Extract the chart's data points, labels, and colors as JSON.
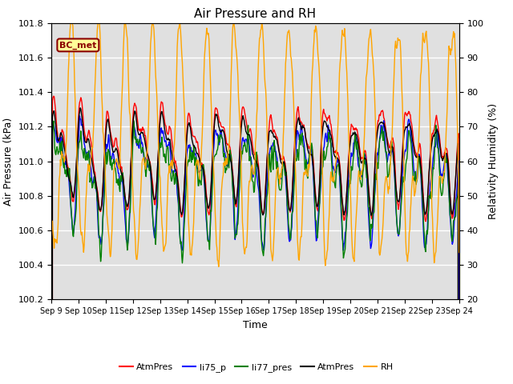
{
  "title": "Air Pressure and RH",
  "xlabel": "Time",
  "ylabel_left": "Air Pressure (kPa)",
  "ylabel_right": "Relativity Humidity (%)",
  "ylim_left": [
    100.2,
    101.8
  ],
  "ylim_right": [
    20,
    100
  ],
  "yticks_left": [
    100.2,
    100.4,
    100.6,
    100.8,
    101.0,
    101.2,
    101.4,
    101.6,
    101.8
  ],
  "yticks_right": [
    20,
    30,
    40,
    50,
    60,
    70,
    80,
    90,
    100
  ],
  "xtick_labels": [
    "Sep 9",
    "Sep 10",
    "Sep 11",
    "Sep 12",
    "Sep 13",
    "Sep 14",
    "Sep 15",
    "Sep 16",
    "Sep 17",
    "Sep 18",
    "Sep 19",
    "Sep 20",
    "Sep 21",
    "Sep 22",
    "Sep 23",
    "Sep 24"
  ],
  "legend_labels": [
    "AtmPres",
    "li75_p",
    "li77_pres",
    "AtmPres",
    "RH"
  ],
  "legend_colors": [
    "red",
    "blue",
    "green",
    "black",
    "orange"
  ],
  "station_label": "BC_met",
  "background_color": "#e0e0e0",
  "n_points": 720,
  "seed": 42
}
